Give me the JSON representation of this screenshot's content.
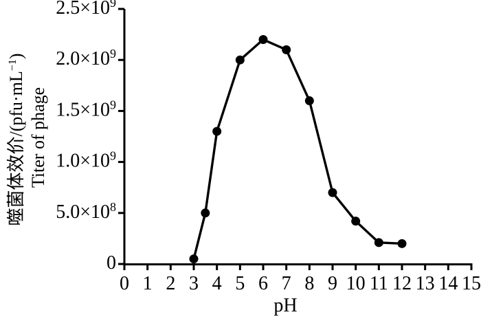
{
  "figure": {
    "background": "#ffffff",
    "ink_color": "#000000"
  },
  "chart_data": {
    "type": "line",
    "title": "",
    "xlabel": "pH",
    "ylabel_zh": {
      "pre": "噬菌体效价/(pfu·mL",
      "sup": "−1",
      "post": ")"
    },
    "ylabel_en": "Titer of phage",
    "x": [
      3,
      3.5,
      4,
      5,
      6,
      7,
      8,
      9,
      10,
      11,
      12
    ],
    "values": [
      50000000,
      500000000,
      1300000000,
      2000000000,
      2200000000,
      2100000000,
      1600000000,
      700000000,
      420000000,
      210000000,
      200000000
    ],
    "series_name": "Titer of phage",
    "xlim": [
      0,
      15
    ],
    "ylim": [
      0,
      2500000000
    ],
    "x_ticks": [
      {
        "value": 0,
        "label": "0"
      },
      {
        "value": 1,
        "label": "1"
      },
      {
        "value": 2,
        "label": "2"
      },
      {
        "value": 3,
        "label": "3"
      },
      {
        "value": 4,
        "label": "4"
      },
      {
        "value": 5,
        "label": "5"
      },
      {
        "value": 6,
        "label": "6"
      },
      {
        "value": 7,
        "label": "7"
      },
      {
        "value": 8,
        "label": "8"
      },
      {
        "value": 9,
        "label": "9"
      },
      {
        "value": 10,
        "label": "10"
      },
      {
        "value": 11,
        "label": "11"
      },
      {
        "value": 12,
        "label": "12"
      },
      {
        "value": 13,
        "label": "13"
      },
      {
        "value": 14,
        "label": "14"
      },
      {
        "value": 15,
        "label": "15"
      }
    ],
    "y_ticks": [
      {
        "value": 0,
        "label": "0",
        "sup": ""
      },
      {
        "value": 500000000,
        "label": "5.0×10",
        "sup": "8"
      },
      {
        "value": 1000000000,
        "label": "1.0×10",
        "sup": "9"
      },
      {
        "value": 1500000000,
        "label": "1.5×10",
        "sup": "9"
      },
      {
        "value": 2000000000,
        "label": "2.0×10",
        "sup": "9"
      },
      {
        "value": 2500000000,
        "label": "2.5×10",
        "sup": "9"
      }
    ],
    "grid": false,
    "legend": "none",
    "marker": "circle",
    "line_color": "#000000",
    "marker_color": "#000000"
  }
}
